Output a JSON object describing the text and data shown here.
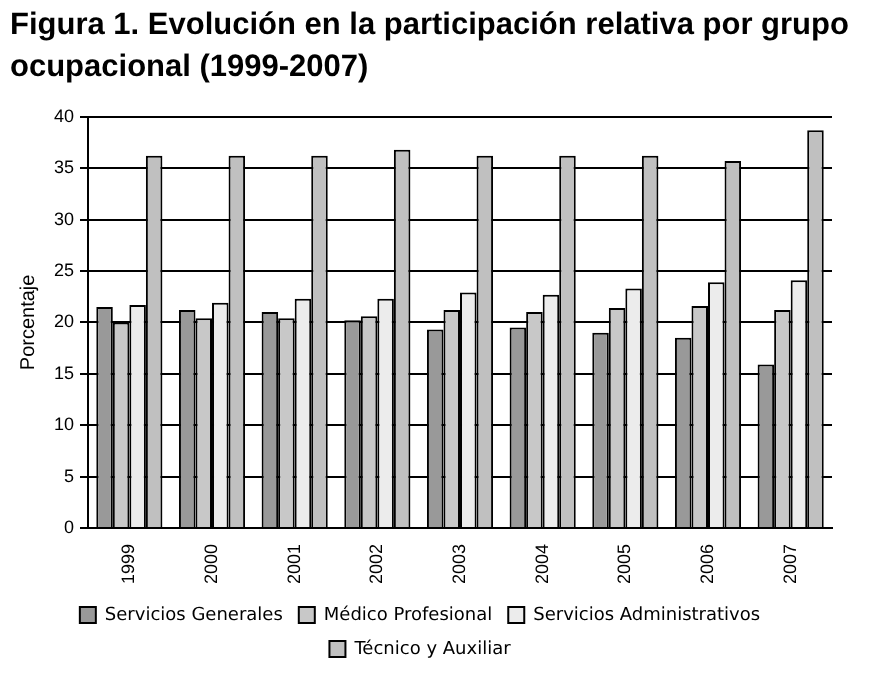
{
  "chart_data": {
    "type": "bar",
    "title": "Figura 1. Evolución en la participación relativa por grupo ocupacional (1999-2007)",
    "ylabel": "Porcentaje",
    "categories": [
      "1999",
      "2000",
      "2001",
      "2002",
      "2003",
      "2004",
      "2005",
      "2006",
      "2007"
    ],
    "series": [
      {
        "name": "Servicios Generales",
        "color": "#999999",
        "values": [
          21.5,
          21.2,
          21.0,
          20.2,
          19.3,
          19.5,
          19.0,
          18.5,
          15.9
        ]
      },
      {
        "name": "Médico Profesional",
        "color": "#c8c8c8",
        "values": [
          20.0,
          20.4,
          20.4,
          20.6,
          21.2,
          21.0,
          21.4,
          21.6,
          21.2
        ]
      },
      {
        "name": "Servicios Administrativos",
        "color": "#ececec",
        "values": [
          21.7,
          21.9,
          22.3,
          22.3,
          22.9,
          22.7,
          23.3,
          23.9,
          24.1
        ]
      },
      {
        "name": "Técnico y Auxiliar",
        "color": "#c0c0c0",
        "values": [
          36.2,
          36.2,
          36.2,
          36.8,
          36.2,
          36.2,
          36.2,
          35.7,
          38.7
        ]
      }
    ],
    "ylim": [
      0,
      40
    ],
    "yticks": [
      0,
      5,
      10,
      15,
      20,
      25,
      30,
      35,
      40
    ],
    "grid": "y",
    "legend": "bottom"
  }
}
